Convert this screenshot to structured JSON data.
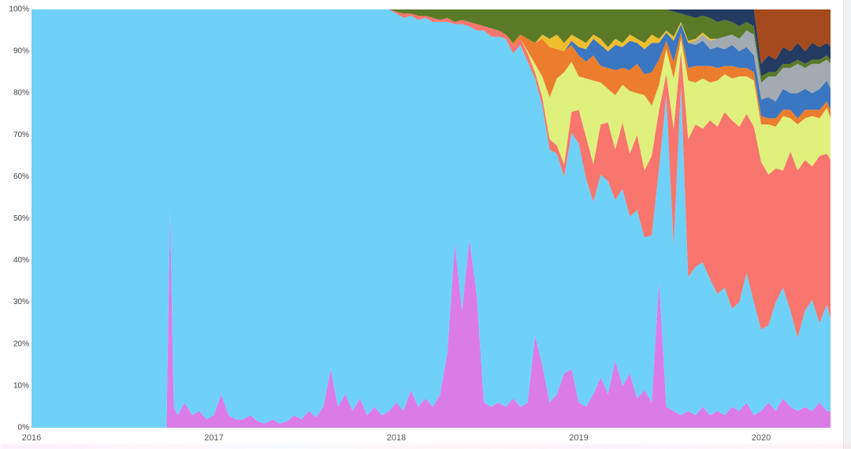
{
  "page": {
    "background": "#ffffff"
  },
  "chart_data": {
    "type": "area",
    "stacked": true,
    "normalized_percent": true,
    "title": "",
    "xlabel": "",
    "ylabel": "",
    "grid": false,
    "legend": "none",
    "x_ticks": [
      "2016",
      "2017",
      "2018",
      "2019",
      "2020"
    ],
    "y_ticks": [
      "0%",
      "10%",
      "20%",
      "30%",
      "40%",
      "50%",
      "60%",
      "70%",
      "80%",
      "90%",
      "100%"
    ],
    "x_range": [
      2016.0,
      2020.38
    ],
    "y_range": [
      0,
      100
    ],
    "remainder_series": "sky",
    "series_order_bottom_to_top": [
      "violet",
      "sky",
      "salmon",
      "lime",
      "orange",
      "steel_blue",
      "gray",
      "gold",
      "olive",
      "navy",
      "brown"
    ],
    "colors": {
      "sky": "#70D1F8",
      "violet": "#DB7BE8",
      "salmon": "#F8766D",
      "lime": "#DFF07C",
      "orange": "#EC7D2D",
      "steel_blue": "#3B76C0",
      "gray": "#A3AAB2",
      "gold": "#EFBE2E",
      "olive": "#5A7A28",
      "navy": "#233A61",
      "brown": "#A54A1C"
    },
    "x": [
      2016.0,
      2016.74,
      2016.76,
      2016.78,
      2016.8,
      2016.84,
      2016.88,
      2016.92,
      2016.96,
      2017.0,
      2017.04,
      2017.08,
      2017.12,
      2017.16,
      2017.2,
      2017.24,
      2017.28,
      2017.32,
      2017.36,
      2017.4,
      2017.44,
      2017.48,
      2017.52,
      2017.56,
      2017.6,
      2017.64,
      2017.68,
      2017.72,
      2017.76,
      2017.8,
      2017.84,
      2017.88,
      2017.92,
      2017.96,
      2018.0,
      2018.04,
      2018.08,
      2018.12,
      2018.16,
      2018.2,
      2018.24,
      2018.28,
      2018.32,
      2018.36,
      2018.4,
      2018.44,
      2018.48,
      2018.52,
      2018.56,
      2018.6,
      2018.64,
      2018.68,
      2018.72,
      2018.76,
      2018.8,
      2018.84,
      2018.88,
      2018.92,
      2018.96,
      2019.0,
      2019.04,
      2019.08,
      2019.12,
      2019.16,
      2019.2,
      2019.24,
      2019.28,
      2019.32,
      2019.36,
      2019.4,
      2019.44,
      2019.48,
      2019.52,
      2019.56,
      2019.6,
      2019.64,
      2019.68,
      2019.72,
      2019.76,
      2019.8,
      2019.84,
      2019.88,
      2019.92,
      2019.96,
      2020.0,
      2020.04,
      2020.08,
      2020.12,
      2020.16,
      2020.2,
      2020.24,
      2020.28,
      2020.32,
      2020.36,
      2020.38
    ],
    "series": {
      "violet": [
        0,
        0,
        52,
        5,
        3,
        6,
        3,
        4,
        2,
        3,
        8,
        3,
        2,
        2,
        3,
        1.5,
        1,
        2,
        1,
        1.5,
        3,
        2,
        4,
        2.5,
        5,
        14,
        5,
        8,
        4,
        7,
        3,
        5,
        3,
        4,
        6,
        4,
        9,
        5,
        7,
        5,
        8,
        18,
        44,
        28,
        45,
        32,
        6,
        5,
        6,
        5,
        7,
        5,
        6,
        22,
        15,
        6,
        8,
        13,
        14,
        6,
        5,
        8,
        12,
        8,
        16,
        10,
        13,
        7,
        9,
        6,
        35,
        5,
        4,
        3,
        4,
        3,
        5,
        3,
        4,
        3,
        5,
        4,
        6,
        3,
        4,
        6,
        4,
        7,
        5,
        4,
        5,
        4,
        6,
        4,
        4
      ],
      "salmon": [
        0,
        0,
        0,
        0,
        0,
        0,
        0,
        0,
        0,
        0,
        0,
        0,
        0,
        0,
        0,
        0,
        0,
        0,
        0,
        0,
        0,
        0,
        0,
        0,
        0,
        0,
        0,
        0,
        0,
        0,
        0,
        0,
        0,
        0,
        0.5,
        1,
        0.5,
        1,
        0.5,
        1,
        0.5,
        1,
        0.5,
        1,
        1,
        1.5,
        1,
        2,
        1.5,
        1,
        2,
        1.5,
        2,
        1.5,
        2,
        2.5,
        2,
        3,
        5,
        8,
        10,
        9,
        12,
        14,
        12,
        16,
        15,
        18,
        16,
        19,
        14,
        5,
        28,
        8,
        33,
        34,
        32,
        38,
        40,
        42,
        45,
        42,
        38,
        42,
        40,
        36,
        32,
        28,
        38,
        40,
        36,
        32,
        40,
        36,
        38
      ],
      "lime": [
        0,
        0,
        0,
        0,
        0,
        0,
        0,
        0,
        0,
        0,
        0,
        0,
        0,
        0,
        0,
        0,
        0,
        0,
        0,
        0,
        0,
        0,
        0,
        0,
        0,
        0,
        0,
        0,
        0,
        0,
        0,
        0,
        0,
        0,
        0,
        0,
        0,
        0,
        0,
        0,
        0,
        0,
        0,
        0,
        0,
        0,
        0,
        0,
        0,
        0,
        0,
        0,
        0.5,
        2,
        5,
        10,
        16,
        22,
        12,
        8,
        14,
        20,
        10,
        8,
        13,
        9,
        15,
        10,
        18,
        12,
        6,
        6,
        12,
        3,
        14,
        10,
        12,
        9,
        11,
        9,
        10,
        12,
        9,
        11,
        9,
        12,
        10,
        13,
        8,
        11,
        10,
        12,
        9,
        11,
        10
      ],
      "orange": [
        0,
        0,
        0,
        0,
        0,
        0,
        0,
        0,
        0,
        0,
        0,
        0,
        0,
        0,
        0,
        0,
        0,
        0,
        0,
        0,
        0,
        0,
        0,
        0,
        0,
        0,
        0,
        0,
        0,
        0,
        0,
        0,
        0,
        0,
        0,
        0,
        0,
        0,
        0,
        0,
        0,
        0,
        0,
        0,
        0,
        0,
        0,
        0,
        0,
        0,
        0.5,
        1,
        3,
        5,
        9,
        12,
        7,
        5,
        4,
        5,
        4,
        6,
        4,
        5,
        6,
        4,
        5,
        7,
        5,
        8,
        6,
        2,
        4,
        1.5,
        3,
        4,
        3,
        4,
        3,
        2,
        3,
        2,
        2,
        2,
        2,
        1.5,
        2,
        1.5,
        2,
        1.5,
        2,
        1.5,
        2,
        1.5,
        2
      ],
      "steel_blue": [
        0,
        0,
        0,
        0,
        0,
        0,
        0,
        0,
        0,
        0,
        0,
        0,
        0,
        0,
        0,
        0,
        0,
        0,
        0,
        0,
        0,
        0,
        0,
        0,
        0,
        0,
        0,
        0,
        0,
        0,
        0,
        0,
        0,
        0,
        0,
        0,
        0,
        0,
        0,
        0,
        0,
        0,
        0,
        0,
        0,
        0,
        0,
        0,
        0,
        0,
        0,
        0,
        0,
        0,
        0,
        0,
        0,
        0,
        1,
        2,
        3,
        4,
        5,
        4,
        6,
        5,
        7,
        5,
        6,
        7,
        4,
        2,
        5,
        2,
        6,
        5,
        6,
        4,
        5,
        4,
        5,
        4,
        5,
        4,
        4,
        5,
        4,
        5,
        4,
        6,
        5,
        4,
        5,
        5,
        5
      ],
      "gray": [
        0,
        0,
        0,
        0,
        0,
        0,
        0,
        0,
        0,
        0,
        0,
        0,
        0,
        0,
        0,
        0,
        0,
        0,
        0,
        0,
        0,
        0,
        0,
        0,
        0,
        0,
        0,
        0,
        0,
        0,
        0,
        0,
        0,
        0,
        0,
        0,
        0,
        0,
        0,
        0,
        0,
        0,
        0,
        0,
        0,
        0,
        0,
        0,
        0,
        0,
        0,
        0,
        0,
        0,
        0,
        0,
        0,
        0,
        0,
        0,
        0,
        0,
        0,
        0,
        0,
        0,
        0,
        0,
        0,
        0,
        0,
        0,
        0,
        0,
        0,
        1,
        1.5,
        2,
        2,
        3,
        2.5,
        3,
        4,
        5,
        4,
        5,
        6,
        5,
        6,
        7,
        5,
        7,
        6,
        5,
        6
      ],
      "gold": [
        0,
        0,
        0,
        0,
        0,
        0,
        0,
        0,
        0,
        0,
        0,
        0,
        0,
        0,
        0,
        0,
        0,
        0,
        0,
        0,
        0,
        0,
        0,
        0,
        0,
        0,
        0,
        0,
        0,
        0,
        0,
        0,
        0,
        0,
        0,
        0,
        0,
        0,
        0,
        0,
        0,
        0,
        0,
        0,
        0,
        0,
        0,
        0,
        0,
        0,
        0,
        0,
        0,
        0,
        1,
        2,
        3.5,
        2,
        1.5,
        2,
        1.5,
        1,
        1.5,
        1,
        1.5,
        1,
        1.5,
        1,
        1.5,
        2,
        1,
        0.5,
        1,
        0.5,
        0.5,
        0.5,
        0.5,
        0.5,
        0,
        0,
        0,
        0,
        0,
        0,
        0,
        0,
        0,
        0,
        0,
        0,
        0,
        0,
        0,
        0,
        0
      ],
      "olive": [
        0,
        0,
        0,
        0,
        0,
        0,
        0,
        0,
        0,
        0,
        0,
        0,
        0,
        0,
        0,
        0,
        0,
        0,
        0,
        0,
        0,
        0,
        0,
        0,
        0,
        0,
        0,
        0,
        0,
        0,
        0,
        0,
        0,
        0,
        0.5,
        1,
        1,
        1.5,
        1.5,
        2,
        2.5,
        2,
        3,
        2.5,
        3,
        3.5,
        4,
        4.5,
        5,
        6,
        8,
        6,
        7,
        8,
        6,
        7,
        6,
        8,
        6,
        7,
        8,
        6,
        7,
        9,
        7,
        8,
        6,
        7,
        8,
        6,
        7,
        5,
        6,
        2,
        6,
        5,
        4,
        5,
        4,
        4,
        3,
        3,
        2,
        2,
        1.5,
        1,
        1,
        1,
        1,
        1,
        1,
        1,
        1,
        1,
        1
      ],
      "navy": [
        0,
        0,
        0,
        0,
        0,
        0,
        0,
        0,
        0,
        0,
        0,
        0,
        0,
        0,
        0,
        0,
        0,
        0,
        0,
        0,
        0,
        0,
        0,
        0,
        0,
        0,
        0,
        0,
        0,
        0,
        0,
        0,
        0,
        0,
        0,
        0,
        0,
        0,
        0,
        0,
        0,
        0,
        0,
        0,
        0,
        0,
        0,
        0,
        0,
        0,
        0,
        0,
        0,
        0,
        0,
        0,
        0,
        0,
        0,
        0,
        0,
        0,
        0,
        0,
        0,
        0,
        0,
        0,
        0,
        0,
        0,
        0,
        0.5,
        1,
        1.5,
        2,
        1.5,
        2,
        3,
        2.5,
        3,
        4,
        3,
        4,
        3,
        4,
        3,
        4,
        3,
        4,
        3,
        4,
        3,
        3,
        3
      ],
      "brown": [
        0,
        0,
        0,
        0,
        0,
        0,
        0,
        0,
        0,
        0,
        0,
        0,
        0,
        0,
        0,
        0,
        0,
        0,
        0,
        0,
        0,
        0,
        0,
        0,
        0,
        0,
        0,
        0,
        0,
        0,
        0,
        0,
        0,
        0,
        0,
        0,
        0,
        0,
        0,
        0,
        0,
        0,
        0,
        0,
        0,
        0,
        0,
        0,
        0,
        0,
        0,
        0,
        0,
        0,
        0,
        0,
        0,
        0,
        0,
        0,
        0,
        0,
        0,
        0,
        0,
        0,
        0,
        0,
        0,
        0,
        0,
        0,
        0,
        0,
        0,
        0,
        0,
        0,
        0,
        0,
        0,
        0,
        0,
        0,
        13,
        11,
        12,
        9,
        10,
        8,
        10,
        8,
        9,
        8,
        9
      ]
    }
  }
}
